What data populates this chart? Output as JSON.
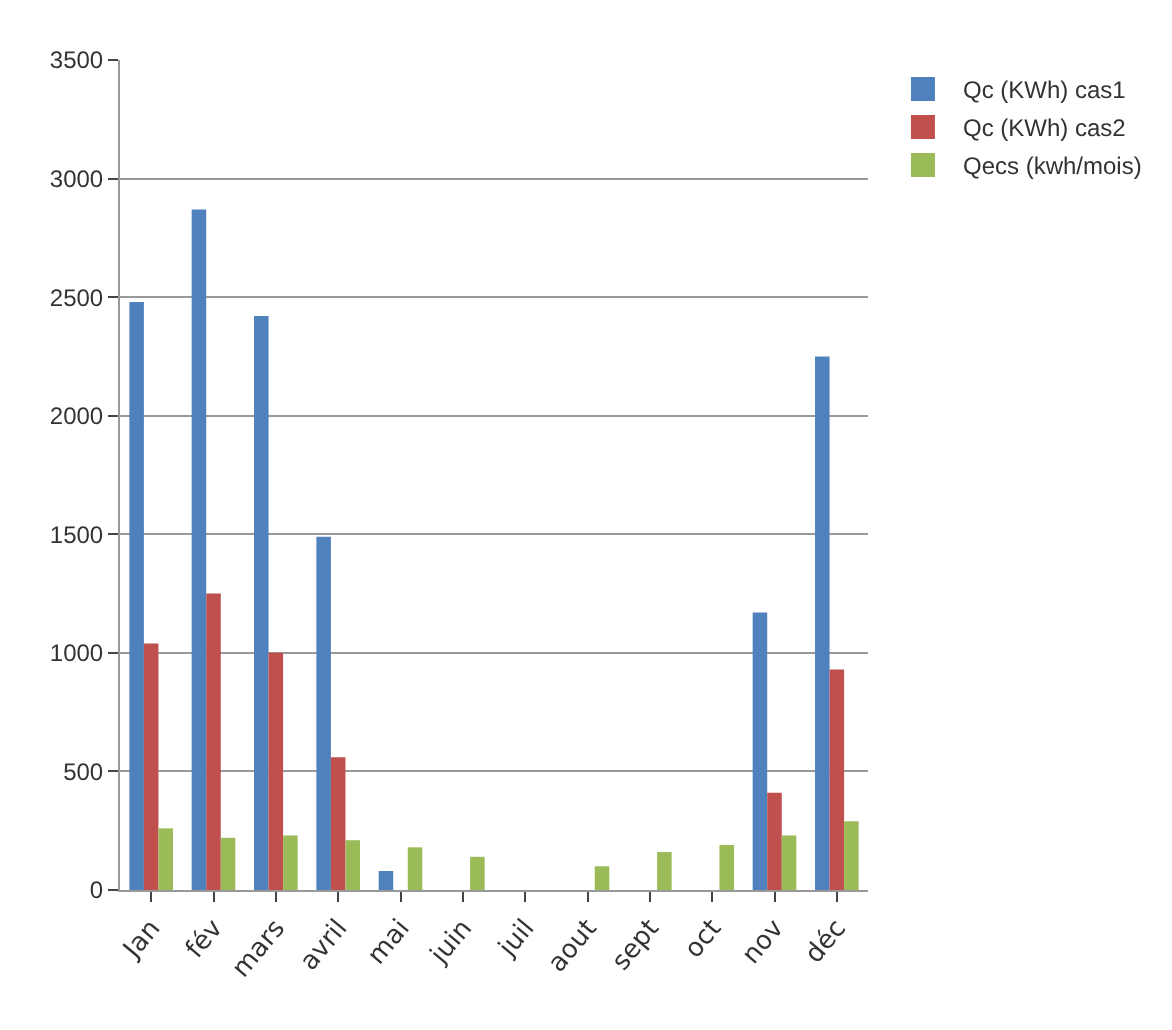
{
  "chart_data": {
    "type": "bar",
    "categories": [
      "Jan",
      "fév",
      "mars",
      "avril",
      "mai",
      "juin",
      "juil",
      "aout",
      "sept",
      "oct",
      "nov",
      "déc"
    ],
    "series": [
      {
        "name": "Qc (KWh) cas1",
        "color": "#4f81bd",
        "values": [
          2480,
          2870,
          2420,
          1490,
          80,
          0,
          0,
          0,
          0,
          0,
          1170,
          2250
        ]
      },
      {
        "name": "Qc (KWh) cas2",
        "color": "#c0504d",
        "values": [
          1040,
          1250,
          1000,
          560,
          0,
          0,
          0,
          0,
          0,
          0,
          410,
          930
        ]
      },
      {
        "name": "Qecs (kwh/mois)",
        "color": "#9bbb59",
        "values": [
          260,
          220,
          230,
          210,
          180,
          140,
          0,
          100,
          160,
          190,
          230,
          290
        ]
      }
    ],
    "ylim": [
      0,
      3500
    ],
    "yticks": [
      0,
      500,
      1000,
      1500,
      2000,
      2500,
      3000,
      3500
    ],
    "grid": "y",
    "legend": "top right"
  }
}
